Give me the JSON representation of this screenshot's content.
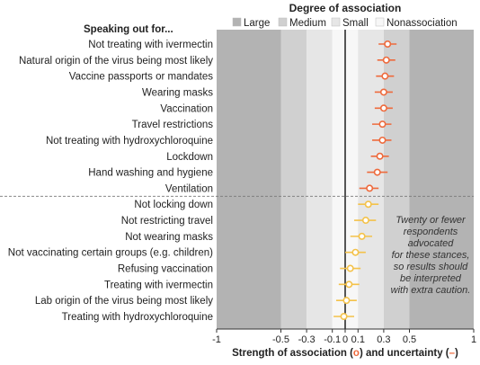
{
  "chart_data": {
    "type": "scatter",
    "legend_title": "Degree of association",
    "legend": [
      {
        "label": "Large",
        "color": "#b3b3b3"
      },
      {
        "label": "Medium",
        "color": "#d0d0d0"
      },
      {
        "label": "Small",
        "color": "#e6e6e6"
      },
      {
        "label": "Nonassociation",
        "color": "#f7f7f7"
      }
    ],
    "ylabel_header": "Speaking out for...",
    "xlabel_main": "Strength of association (",
    "xlabel_mid": ") and uncertainty (",
    "xlabel_end": ")",
    "xlabel_point_glyph": "o",
    "xlabel_line_glyph": "–",
    "xlim": [
      -1,
      1
    ],
    "bands": [
      {
        "from": -1,
        "to": -0.5,
        "level": "Large"
      },
      {
        "from": -0.5,
        "to": -0.3,
        "level": "Medium"
      },
      {
        "from": -0.3,
        "to": -0.1,
        "level": "Small"
      },
      {
        "from": -0.1,
        "to": 0.1,
        "level": "Nonassociation"
      },
      {
        "from": 0.1,
        "to": 0.3,
        "level": "Small"
      },
      {
        "from": 0.3,
        "to": 0.5,
        "level": "Medium"
      },
      {
        "from": 0.5,
        "to": 1,
        "level": "Large"
      }
    ],
    "ticks": [
      {
        "value": -1,
        "label": "-1"
      },
      {
        "value": -0.5,
        "label": "-0.5"
      },
      {
        "value": -0.3,
        "label": "-0.3"
      },
      {
        "value": -0.1,
        "label": "-0.1"
      },
      {
        "value": 0,
        "label": "0"
      },
      {
        "value": 0.1,
        "label": "0.1"
      },
      {
        "value": 0.3,
        "label": "0.3"
      },
      {
        "value": 0.5,
        "label": "0.5"
      },
      {
        "value": 1,
        "label": "1"
      }
    ],
    "annotation": [
      "Twenty or fewer",
      "respondents",
      "advocated",
      "for these stances,",
      "so results should",
      "be interpreted",
      "with extra caution."
    ],
    "colors": {
      "strong": "#ee6a3c",
      "weak": "#f4c24a"
    },
    "points": [
      {
        "label": "Not treating with ivermectin",
        "value": 0.33,
        "low": 0.26,
        "high": 0.4,
        "group": "strong"
      },
      {
        "label": "Natural origin of the virus being most likely",
        "value": 0.32,
        "low": 0.25,
        "high": 0.39,
        "group": "strong"
      },
      {
        "label": "Vaccine passports or mandates",
        "value": 0.31,
        "low": 0.24,
        "high": 0.38,
        "group": "strong"
      },
      {
        "label": "Wearing masks",
        "value": 0.3,
        "low": 0.23,
        "high": 0.37,
        "group": "strong"
      },
      {
        "label": "Vaccination",
        "value": 0.3,
        "low": 0.23,
        "high": 0.37,
        "group": "strong"
      },
      {
        "label": "Travel restrictions",
        "value": 0.29,
        "low": 0.21,
        "high": 0.36,
        "group": "strong"
      },
      {
        "label": "Not treating with hydroxychloroquine",
        "value": 0.29,
        "low": 0.21,
        "high": 0.36,
        "group": "strong"
      },
      {
        "label": "Lockdown",
        "value": 0.27,
        "low": 0.2,
        "high": 0.34,
        "group": "strong"
      },
      {
        "label": "Hand washing and hygiene",
        "value": 0.25,
        "low": 0.17,
        "high": 0.33,
        "group": "strong"
      },
      {
        "label": "Ventilation",
        "value": 0.19,
        "low": 0.11,
        "high": 0.26,
        "group": "strong"
      },
      {
        "label": "Not locking down",
        "value": 0.18,
        "low": 0.1,
        "high": 0.26,
        "group": "weak"
      },
      {
        "label": "Not restricting travel",
        "value": 0.16,
        "low": 0.07,
        "high": 0.24,
        "group": "weak"
      },
      {
        "label": "Not wearing masks",
        "value": 0.13,
        "low": 0.04,
        "high": 0.21,
        "group": "weak"
      },
      {
        "label": "Not vaccinating certain groups (e.g. children)",
        "value": 0.08,
        "low": 0.0,
        "high": 0.16,
        "group": "weak"
      },
      {
        "label": "Refusing vaccination",
        "value": 0.04,
        "low": -0.04,
        "high": 0.12,
        "group": "weak"
      },
      {
        "label": "Treating with ivermectin",
        "value": 0.03,
        "low": -0.05,
        "high": 0.11,
        "group": "weak"
      },
      {
        "label": "Lab origin of the virus being most likely",
        "value": 0.01,
        "low": -0.07,
        "high": 0.09,
        "group": "weak"
      },
      {
        "label": "Treating with hydroxychloroquine",
        "value": -0.01,
        "low": -0.09,
        "high": 0.07,
        "group": "weak"
      }
    ]
  }
}
